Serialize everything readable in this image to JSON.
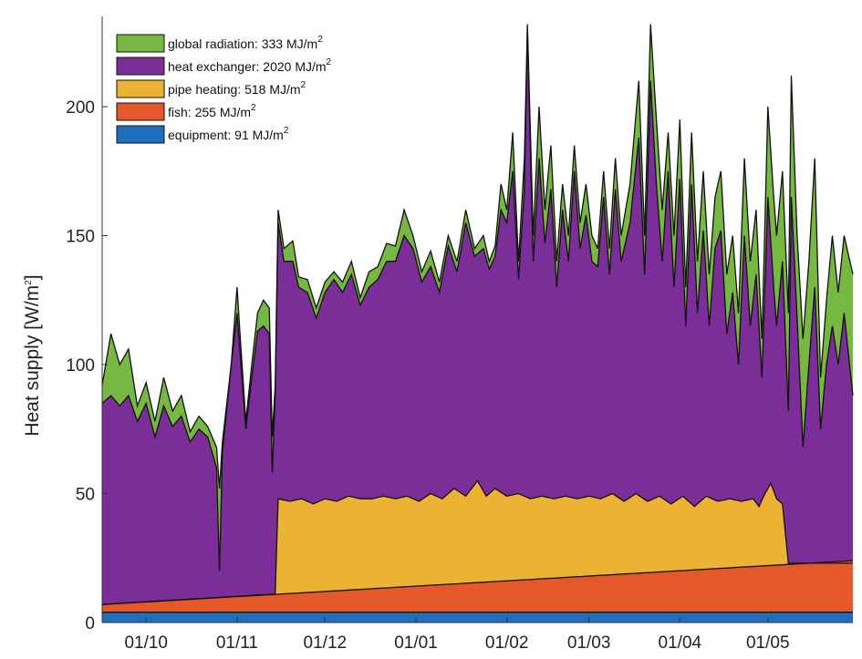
{
  "chart_data": {
    "type": "area",
    "stacked": true,
    "ylabel": "Heat supply [W/m",
    "ylabel_sup": "2",
    "ylabel_close": "]",
    "ylim": [
      0,
      235
    ],
    "xlim": [
      0,
      256
    ],
    "yticks": [
      0,
      50,
      100,
      150,
      200
    ],
    "x_ticks": [
      {
        "label": "01/10",
        "day": 15
      },
      {
        "label": "01/11",
        "day": 46
      },
      {
        "label": "01/12",
        "day": 76
      },
      {
        "label": "01/01",
        "day": 107
      },
      {
        "label": "01/02",
        "day": 138
      },
      {
        "label": "01/03",
        "day": 166
      },
      {
        "label": "01/04",
        "day": 197
      },
      {
        "label": "01/05",
        "day": 227
      }
    ],
    "legend_position": "top-left",
    "grid": false,
    "series": [
      {
        "key": "global",
        "label": "global radiation:  333 MJ/m",
        "sup": "2",
        "color": "#77b843",
        "total_points": [
          [
            0,
            92
          ],
          [
            3,
            112
          ],
          [
            6,
            100
          ],
          [
            9,
            106
          ],
          [
            12,
            84
          ],
          [
            15,
            93
          ],
          [
            18,
            78
          ],
          [
            21,
            95
          ],
          [
            24,
            82
          ],
          [
            27,
            88
          ],
          [
            30,
            74
          ],
          [
            33,
            80
          ],
          [
            36,
            76
          ],
          [
            39,
            68
          ],
          [
            40,
            52
          ],
          [
            41,
            70
          ],
          [
            44,
            100
          ],
          [
            46,
            130
          ],
          [
            47,
            112
          ],
          [
            49,
            78
          ],
          [
            51,
            100
          ],
          [
            53,
            120
          ],
          [
            55,
            125
          ],
          [
            57,
            122
          ],
          [
            58,
            72
          ],
          [
            59,
            92
          ],
          [
            60,
            160
          ],
          [
            62,
            145
          ],
          [
            65,
            148
          ],
          [
            67,
            134
          ],
          [
            70,
            133
          ],
          [
            73,
            122
          ],
          [
            76,
            132
          ],
          [
            79,
            136
          ],
          [
            82,
            132
          ],
          [
            85,
            140
          ],
          [
            88,
            126
          ],
          [
            91,
            136
          ],
          [
            94,
            138
          ],
          [
            97,
            147
          ],
          [
            100,
            146
          ],
          [
            103,
            160
          ],
          [
            106,
            150
          ],
          [
            109,
            136
          ],
          [
            112,
            144
          ],
          [
            115,
            132
          ],
          [
            118,
            150
          ],
          [
            121,
            140
          ],
          [
            124,
            160
          ],
          [
            127,
            145
          ],
          [
            130,
            150
          ],
          [
            132,
            140
          ],
          [
            134,
            146
          ],
          [
            136,
            170
          ],
          [
            138,
            160
          ],
          [
            140,
            190
          ],
          [
            142,
            140
          ],
          [
            144,
            180
          ],
          [
            145,
            232
          ],
          [
            147,
            150
          ],
          [
            149,
            200
          ],
          [
            151,
            160
          ],
          [
            153,
            185
          ],
          [
            155,
            140
          ],
          [
            157,
            170
          ],
          [
            159,
            150
          ],
          [
            161,
            185
          ],
          [
            163,
            155
          ],
          [
            165,
            170
          ],
          [
            167,
            150
          ],
          [
            169,
            145
          ],
          [
            171,
            175
          ],
          [
            173,
            145
          ],
          [
            175,
            180
          ],
          [
            177,
            150
          ],
          [
            180,
            170
          ],
          [
            183,
            210
          ],
          [
            185,
            150
          ],
          [
            187,
            232
          ],
          [
            189,
            195
          ],
          [
            191,
            160
          ],
          [
            193,
            190
          ],
          [
            195,
            150
          ],
          [
            197,
            195
          ],
          [
            199,
            130
          ],
          [
            201,
            190
          ],
          [
            203,
            140
          ],
          [
            205,
            175
          ],
          [
            207,
            135
          ],
          [
            209,
            165
          ],
          [
            211,
            175
          ],
          [
            213,
            135
          ],
          [
            215,
            150
          ],
          [
            217,
            120
          ],
          [
            219,
            180
          ],
          [
            221,
            140
          ],
          [
            223,
            160
          ],
          [
            225,
            110
          ],
          [
            227,
            200
          ],
          [
            229,
            165
          ],
          [
            230,
            150
          ],
          [
            232,
            175
          ],
          [
            234,
            120
          ],
          [
            235,
            212
          ],
          [
            237,
            150
          ],
          [
            239,
            110
          ],
          [
            241,
            140
          ],
          [
            243,
            180
          ],
          [
            245,
            95
          ],
          [
            247,
            125
          ],
          [
            249,
            150
          ],
          [
            251,
            128
          ],
          [
            253,
            150
          ],
          [
            256,
            135
          ]
        ]
      },
      {
        "key": "hx",
        "label": "heat exchanger: 2020 MJ/m",
        "sup": "2",
        "color": "#7b2e98",
        "total_points": [
          [
            0,
            85
          ],
          [
            3,
            88
          ],
          [
            6,
            84
          ],
          [
            9,
            88
          ],
          [
            12,
            78
          ],
          [
            15,
            85
          ],
          [
            18,
            72
          ],
          [
            21,
            84
          ],
          [
            24,
            76
          ],
          [
            27,
            80
          ],
          [
            30,
            70
          ],
          [
            33,
            75
          ],
          [
            36,
            72
          ],
          [
            39,
            60
          ],
          [
            40,
            20
          ],
          [
            41,
            66
          ],
          [
            44,
            100
          ],
          [
            46,
            120
          ],
          [
            47,
            105
          ],
          [
            49,
            75
          ],
          [
            51,
            95
          ],
          [
            53,
            113
          ],
          [
            55,
            115
          ],
          [
            57,
            112
          ],
          [
            58,
            58
          ],
          [
            59,
            88
          ],
          [
            60,
            155
          ],
          [
            62,
            140
          ],
          [
            65,
            140
          ],
          [
            67,
            130
          ],
          [
            70,
            128
          ],
          [
            73,
            118
          ],
          [
            76,
            128
          ],
          [
            79,
            133
          ],
          [
            82,
            128
          ],
          [
            85,
            135
          ],
          [
            88,
            123
          ],
          [
            91,
            130
          ],
          [
            94,
            133
          ],
          [
            97,
            140
          ],
          [
            100,
            140
          ],
          [
            103,
            150
          ],
          [
            106,
            145
          ],
          [
            109,
            132
          ],
          [
            112,
            138
          ],
          [
            115,
            128
          ],
          [
            118,
            146
          ],
          [
            121,
            136
          ],
          [
            124,
            155
          ],
          [
            127,
            142
          ],
          [
            130,
            145
          ],
          [
            132,
            137
          ],
          [
            134,
            142
          ],
          [
            136,
            160
          ],
          [
            138,
            155
          ],
          [
            140,
            175
          ],
          [
            142,
            133
          ],
          [
            144,
            168
          ],
          [
            145,
            230
          ],
          [
            147,
            140
          ],
          [
            149,
            180
          ],
          [
            151,
            147
          ],
          [
            153,
            168
          ],
          [
            155,
            130
          ],
          [
            157,
            160
          ],
          [
            159,
            140
          ],
          [
            161,
            175
          ],
          [
            163,
            145
          ],
          [
            165,
            158
          ],
          [
            167,
            140
          ],
          [
            169,
            138
          ],
          [
            171,
            165
          ],
          [
            173,
            135
          ],
          [
            175,
            168
          ],
          [
            177,
            140
          ],
          [
            180,
            155
          ],
          [
            183,
            188
          ],
          [
            185,
            135
          ],
          [
            187,
            210
          ],
          [
            189,
            170
          ],
          [
            191,
            140
          ],
          [
            193,
            175
          ],
          [
            195,
            130
          ],
          [
            197,
            172
          ],
          [
            199,
            115
          ],
          [
            201,
            170
          ],
          [
            203,
            120
          ],
          [
            205,
            152
          ],
          [
            207,
            115
          ],
          [
            209,
            145
          ],
          [
            211,
            152
          ],
          [
            213,
            112
          ],
          [
            215,
            128
          ],
          [
            217,
            100
          ],
          [
            219,
            150
          ],
          [
            221,
            115
          ],
          [
            223,
            135
          ],
          [
            225,
            95
          ],
          [
            227,
            165
          ],
          [
            229,
            130
          ],
          [
            230,
            115
          ],
          [
            232,
            140
          ],
          [
            234,
            82
          ],
          [
            235,
            165
          ],
          [
            237,
            118
          ],
          [
            239,
            68
          ],
          [
            241,
            100
          ],
          [
            243,
            130
          ],
          [
            245,
            75
          ],
          [
            247,
            100
          ],
          [
            249,
            115
          ],
          [
            251,
            100
          ],
          [
            253,
            120
          ],
          [
            256,
            88
          ]
        ]
      },
      {
        "key": "pipe",
        "label": "pipe heating:  518 MJ/m",
        "sup": "2",
        "color": "#ecb234",
        "total_points": [
          [
            0,
            7
          ],
          [
            58,
            11
          ],
          [
            59,
            11
          ],
          [
            60,
            48
          ],
          [
            64,
            47
          ],
          [
            68,
            48
          ],
          [
            72,
            46
          ],
          [
            76,
            48
          ],
          [
            80,
            47
          ],
          [
            84,
            49
          ],
          [
            88,
            48
          ],
          [
            92,
            48
          ],
          [
            96,
            49
          ],
          [
            100,
            48
          ],
          [
            104,
            49
          ],
          [
            108,
            47
          ],
          [
            112,
            50
          ],
          [
            116,
            48
          ],
          [
            120,
            52
          ],
          [
            124,
            49
          ],
          [
            128,
            55
          ],
          [
            131,
            49
          ],
          [
            134,
            52
          ],
          [
            138,
            49
          ],
          [
            142,
            50
          ],
          [
            146,
            48
          ],
          [
            150,
            49
          ],
          [
            154,
            48
          ],
          [
            158,
            49
          ],
          [
            162,
            48
          ],
          [
            166,
            49
          ],
          [
            170,
            48
          ],
          [
            174,
            50
          ],
          [
            178,
            47
          ],
          [
            182,
            50
          ],
          [
            186,
            47
          ],
          [
            190,
            49
          ],
          [
            194,
            46
          ],
          [
            198,
            49
          ],
          [
            202,
            45
          ],
          [
            206,
            49
          ],
          [
            210,
            47
          ],
          [
            214,
            48
          ],
          [
            218,
            47
          ],
          [
            222,
            48
          ],
          [
            224,
            45
          ],
          [
            226,
            50
          ],
          [
            228,
            54
          ],
          [
            230,
            48
          ],
          [
            232,
            46
          ],
          [
            234,
            23
          ],
          [
            256,
            23
          ]
        ]
      },
      {
        "key": "fish",
        "label": "fish:  255 MJ/m",
        "sup": "2",
        "color": "#e4582a",
        "total_points": [
          [
            0,
            7
          ],
          [
            256,
            24
          ]
        ]
      },
      {
        "key": "equip",
        "label": "equipment:  91 MJ/m",
        "sup": "2",
        "color": "#1f6fbf",
        "total_points": [
          [
            0,
            4
          ],
          [
            256,
            4
          ]
        ]
      }
    ]
  }
}
